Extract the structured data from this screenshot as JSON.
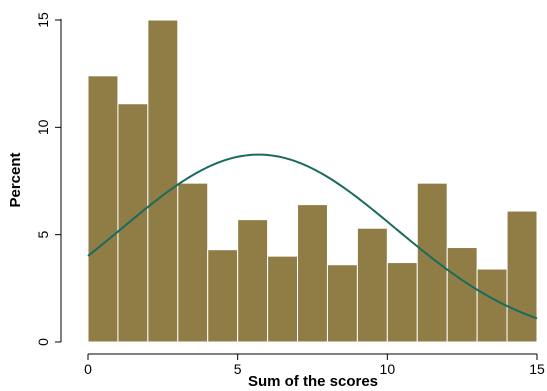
{
  "chart_data": {
    "type": "bar",
    "subtype": "histogram-with-normal-density-curve",
    "title": "",
    "xlabel": "Sum of the scores",
    "ylabel": "Percent",
    "xlim": [
      -0.5,
      15.2
    ],
    "ylim": [
      0,
      15.3
    ],
    "x_ticks": [
      0,
      5,
      10,
      15
    ],
    "y_ticks": [
      0,
      5,
      10,
      15
    ],
    "grid": false,
    "bins": [
      {
        "x0": 0,
        "x1": 1,
        "value": 12.4
      },
      {
        "x0": 1,
        "x1": 2,
        "value": 11.1
      },
      {
        "x0": 2,
        "x1": 3,
        "value": 15.0
      },
      {
        "x0": 3,
        "x1": 4,
        "value": 7.4
      },
      {
        "x0": 4,
        "x1": 5,
        "value": 4.3
      },
      {
        "x0": 5,
        "x1": 6,
        "value": 5.7
      },
      {
        "x0": 6,
        "x1": 7,
        "value": 4.0
      },
      {
        "x0": 7,
        "x1": 8,
        "value": 6.4
      },
      {
        "x0": 8,
        "x1": 9,
        "value": 3.6
      },
      {
        "x0": 9,
        "x1": 10,
        "value": 5.3
      },
      {
        "x0": 10,
        "x1": 11,
        "value": 3.7
      },
      {
        "x0": 11,
        "x1": 12,
        "value": 7.4
      },
      {
        "x0": 12,
        "x1": 13,
        "value": 4.4
      },
      {
        "x0": 13,
        "x1": 14,
        "value": 3.4
      },
      {
        "x0": 14,
        "x1": 15,
        "value": 6.1
      }
    ],
    "normal_curve": {
      "mean": 5.7,
      "sd": 4.57
    },
    "colors": {
      "bar_fill": "#8f7d45",
      "bar_edge": "#ffffff",
      "curve": "#1a6b5e",
      "axis": "#000000"
    }
  }
}
